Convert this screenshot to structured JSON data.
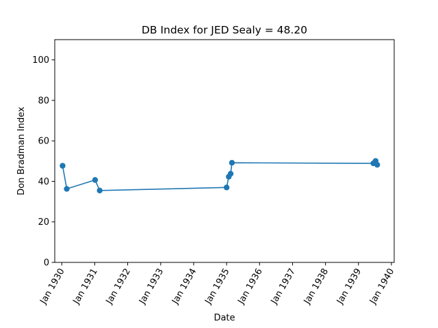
{
  "chart_data": {
    "type": "line",
    "title": "DB Index for JED Sealy = 48.20",
    "xlabel": "Date",
    "ylabel": "Don Bradman Index",
    "xlim": [
      "1929-10-15",
      "1940-02-01"
    ],
    "ylim": [
      0,
      110
    ],
    "grid": false,
    "line_color": "#1f77b4",
    "x_ticks": [
      {
        "date": "1930-01-01",
        "label": "Jan 1930"
      },
      {
        "date": "1931-01-01",
        "label": "Jan 1931"
      },
      {
        "date": "1932-01-01",
        "label": "Jan 1932"
      },
      {
        "date": "1933-01-01",
        "label": "Jan 1933"
      },
      {
        "date": "1934-01-01",
        "label": "Jan 1934"
      },
      {
        "date": "1935-01-01",
        "label": "Jan 1935"
      },
      {
        "date": "1936-01-01",
        "label": "Jan 1936"
      },
      {
        "date": "1937-01-01",
        "label": "Jan 1937"
      },
      {
        "date": "1938-01-01",
        "label": "Jan 1938"
      },
      {
        "date": "1939-01-01",
        "label": "Jan 1939"
      },
      {
        "date": "1940-01-01",
        "label": "Jan 1940"
      }
    ],
    "y_ticks": [
      0,
      20,
      40,
      60,
      80,
      100
    ],
    "series": [
      {
        "points": [
          {
            "x": "1930-01-10",
            "y": 47.7
          },
          {
            "x": "1930-02-25",
            "y": 36.3
          },
          {
            "x": "1931-01-05",
            "y": 40.7
          },
          {
            "x": "1931-02-25",
            "y": 35.5
          },
          {
            "x": "1935-01-01",
            "y": 37.0
          },
          {
            "x": "1935-01-25",
            "y": 42.3
          },
          {
            "x": "1935-02-15",
            "y": 43.8
          },
          {
            "x": "1935-03-01",
            "y": 49.2
          },
          {
            "x": "1939-06-15",
            "y": 48.9
          },
          {
            "x": "1939-07-10",
            "y": 50.1
          },
          {
            "x": "1939-07-28",
            "y": 48.2
          }
        ]
      }
    ]
  }
}
